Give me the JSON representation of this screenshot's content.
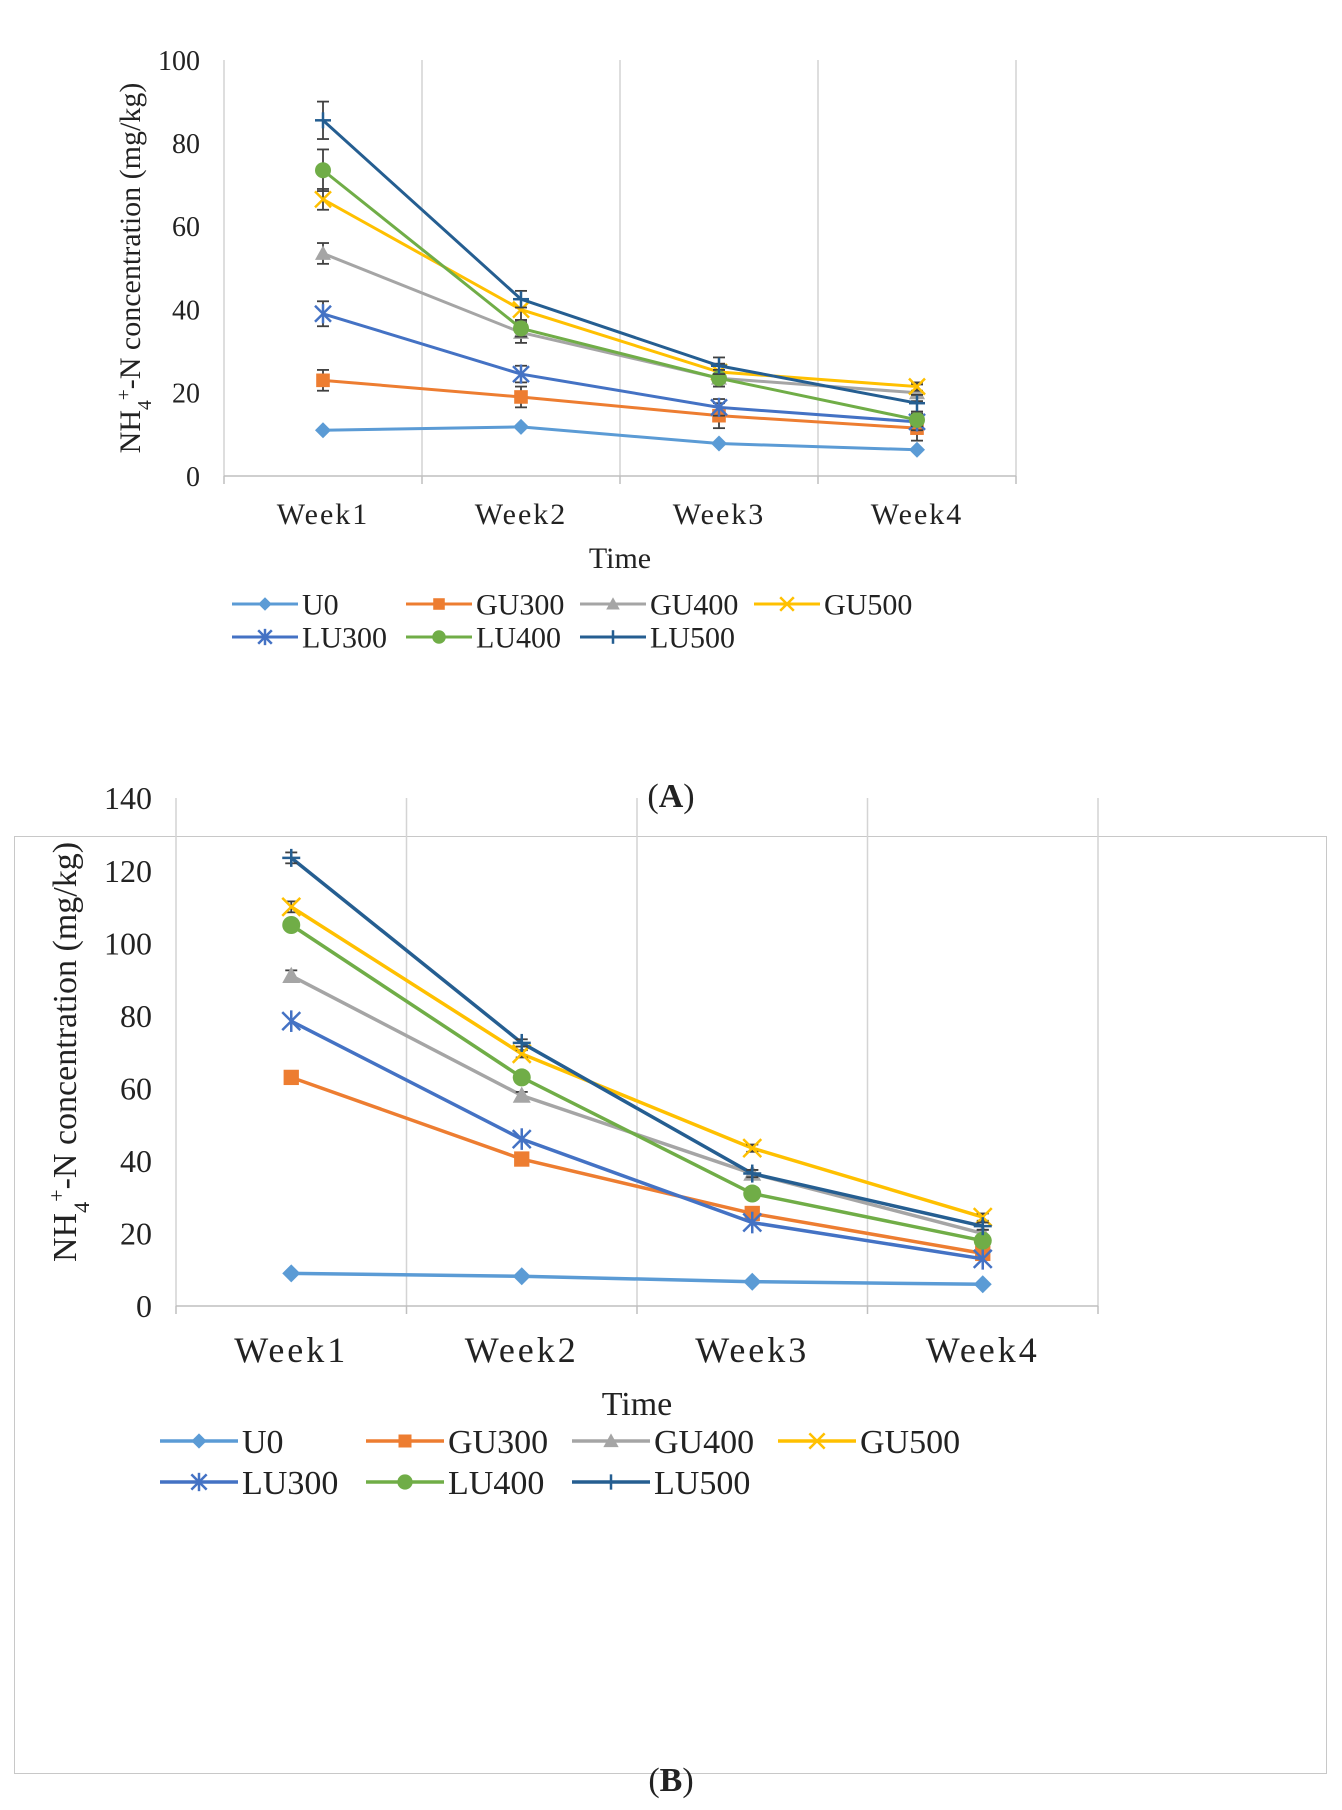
{
  "chart_data": [
    {
      "type": "line",
      "panel_label": "A",
      "categories": [
        "Week1",
        "Week2",
        "Week3",
        "Week4"
      ],
      "xlabel": "Time",
      "ylabel_parts": [
        "NH",
        "4",
        "+",
        "-N concentration (mg/kg)"
      ],
      "ylim": [
        0,
        100
      ],
      "yticks": [
        0,
        20,
        40,
        60,
        80,
        100
      ],
      "grid": "vertical",
      "legend_position": "bottom",
      "series": [
        {
          "name": "U0",
          "color": "#5b9bd5",
          "marker": "diamond",
          "values": [
            11,
            11.8,
            7.8,
            6.3
          ],
          "errors": [
            0,
            0,
            0,
            0
          ]
        },
        {
          "name": "GU300",
          "color": "#ed7d31",
          "marker": "square",
          "values": [
            23,
            19,
            14.5,
            11.5
          ],
          "errors": [
            2.5,
            2.5,
            3,
            3
          ]
        },
        {
          "name": "GU400",
          "color": "#a5a5a5",
          "marker": "triangle",
          "values": [
            53.5,
            34.5,
            23.5,
            20
          ],
          "errors": [
            2.5,
            2.5,
            2,
            2
          ]
        },
        {
          "name": "GU500",
          "color": "#ffc000",
          "marker": "x",
          "values": [
            66.5,
            40,
            25,
            21.5
          ],
          "errors": [
            2.5,
            2.5,
            2,
            1
          ]
        },
        {
          "name": "LU300",
          "color": "#4472c4",
          "marker": "star",
          "values": [
            39,
            24.5,
            16.5,
            13
          ],
          "errors": [
            3,
            2,
            2,
            2
          ]
        },
        {
          "name": "LU400",
          "color": "#70ad47",
          "marker": "circle",
          "values": [
            73.5,
            35.5,
            23.5,
            13.5
          ],
          "errors": [
            5,
            2,
            2,
            1.5
          ]
        },
        {
          "name": "LU500",
          "color": "#255e91",
          "marker": "plus",
          "values": [
            85.5,
            42.5,
            26.5,
            17.5
          ],
          "errors": [
            4.5,
            2,
            2,
            2
          ]
        }
      ]
    },
    {
      "type": "line",
      "panel_label": "B",
      "categories": [
        "Week1",
        "Week2",
        "Week3",
        "Week4"
      ],
      "xlabel": "Time",
      "ylabel_parts": [
        "NH",
        "4",
        "+",
        "-N  concentration (mg/kg)"
      ],
      "ylim": [
        0,
        140
      ],
      "yticks": [
        0,
        20,
        40,
        60,
        80,
        100,
        120,
        140
      ],
      "grid": "vertical",
      "legend_position": "bottom",
      "series": [
        {
          "name": "U0",
          "color": "#5b9bd5",
          "marker": "diamond",
          "values": [
            9,
            8.2,
            6.7,
            6
          ],
          "errors": [
            0,
            0,
            0,
            0
          ]
        },
        {
          "name": "GU300",
          "color": "#ed7d31",
          "marker": "square",
          "values": [
            63,
            40.5,
            25.5,
            14.5
          ],
          "errors": [
            0,
            0,
            0,
            0
          ]
        },
        {
          "name": "GU400",
          "color": "#a5a5a5",
          "marker": "triangle",
          "values": [
            91,
            58,
            36.5,
            20
          ],
          "errors": [
            1.5,
            1,
            1,
            1
          ]
        },
        {
          "name": "GU500",
          "color": "#ffc000",
          "marker": "x",
          "values": [
            110,
            69.5,
            43.5,
            24.5
          ],
          "errors": [
            1.5,
            1,
            1,
            1
          ]
        },
        {
          "name": "LU300",
          "color": "#4472c4",
          "marker": "star",
          "values": [
            78.5,
            46,
            23,
            13
          ],
          "errors": [
            0,
            0,
            0,
            0
          ]
        },
        {
          "name": "LU400",
          "color": "#70ad47",
          "marker": "circle",
          "values": [
            105,
            63,
            31,
            18
          ],
          "errors": [
            0,
            0,
            0,
            0
          ]
        },
        {
          "name": "LU500",
          "color": "#255e91",
          "marker": "plus",
          "values": [
            123.5,
            72.5,
            36.5,
            22
          ],
          "errors": [
            1.5,
            1,
            1,
            1
          ]
        }
      ]
    }
  ]
}
